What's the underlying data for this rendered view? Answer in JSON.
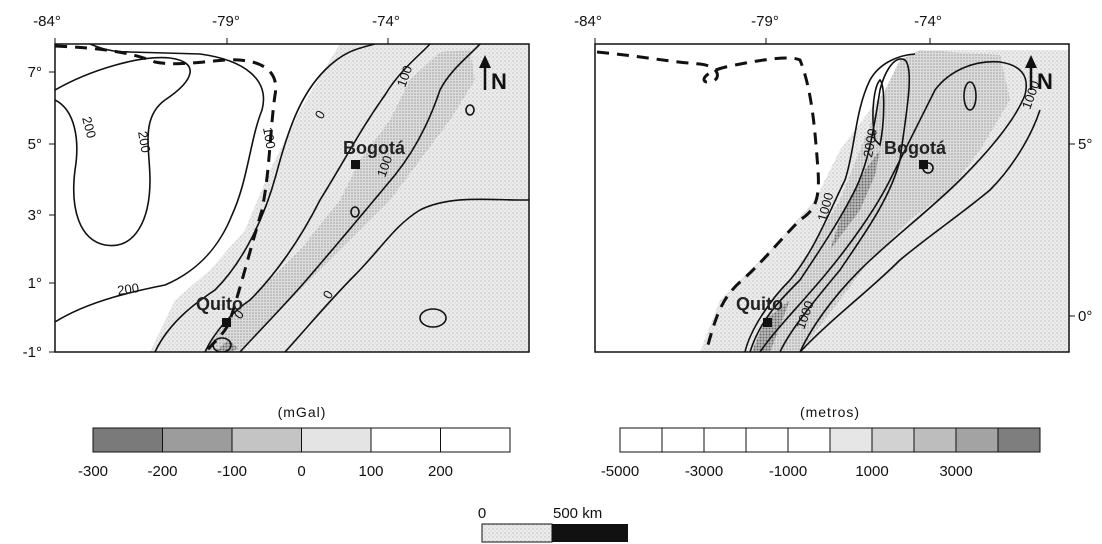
{
  "left_map": {
    "lon_ticks": [
      "-84°",
      "-79°",
      "-74°"
    ],
    "lat_ticks": [
      "7°",
      "5°",
      "3°",
      "1°",
      "-1°"
    ],
    "cities": [
      "Bogotá",
      "Quito"
    ],
    "contour_labels": [
      "200",
      "200",
      "200",
      "100",
      "100",
      "100",
      "0",
      "0",
      "0"
    ],
    "north_label": "N"
  },
  "right_map": {
    "lon_ticks": [
      "-84°",
      "-79°",
      "-74°"
    ],
    "lat_ticks": [
      "5°",
      "0°"
    ],
    "cities": [
      "Bogotá",
      "Quito"
    ],
    "contour_labels": [
      "2000",
      "1000",
      "1000",
      "1000"
    ],
    "north_label": "N"
  },
  "legend_gravity": {
    "units": "(mGal)",
    "ticks": [
      "-300",
      "-200",
      "-100",
      "0",
      "100",
      "200"
    ],
    "swatch_colors": [
      "#7a7a7a",
      "#9c9c9c",
      "#c4c4c4",
      "#e4e4e4",
      "#ffffff",
      "#ffffff"
    ]
  },
  "legend_elevation": {
    "units": "(metros)",
    "ticks": [
      "-5000",
      "-3000",
      "-1000",
      "1000",
      "3000"
    ],
    "swatch_colors": [
      "#ffffff",
      "#ffffff",
      "#ffffff",
      "#ffffff",
      "#ffffff",
      "#e6e6e6",
      "#d2d2d2",
      "#bdbdbd",
      "#a3a3a3",
      "#7e7e7e"
    ]
  },
  "scale_bar": {
    "zero_label": "0",
    "end_label": "500 km"
  }
}
